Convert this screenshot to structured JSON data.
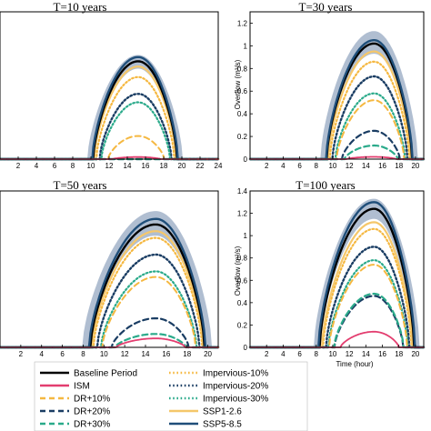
{
  "chart_data": [
    {
      "type": "line",
      "title": "T=10 years",
      "xlabel": "",
      "ylabel": "",
      "xlim": [
        0,
        24
      ],
      "ylim": [
        0,
        1.4
      ],
      "xticks": [
        2,
        4,
        6,
        8,
        10,
        12,
        14,
        16,
        18,
        20,
        22,
        24
      ],
      "yticks": [],
      "start": 10.1,
      "end": 19.6,
      "peak_t": 15.2,
      "band": {
        "low": 0.86,
        "high": 0.99
      },
      "series": [
        {
          "name": "Baseline Period",
          "peak": 0.93
        },
        {
          "name": "ISM",
          "peak": 0.02
        },
        {
          "name": "DR+10%",
          "peak": 0.22
        },
        {
          "name": "DR+20%",
          "peak": 0.0
        },
        {
          "name": "DR+30%",
          "peak": 0.0
        },
        {
          "name": "Impervious-10%",
          "peak": 0.78
        },
        {
          "name": "Impervious-20%",
          "peak": 0.62
        },
        {
          "name": "Impervious-30%",
          "peak": 0.54
        },
        {
          "name": "SSP1-2.6",
          "peak": 0.88
        },
        {
          "name": "SSP5-8.5",
          "peak": 0.97
        }
      ]
    },
    {
      "type": "line",
      "title": "T=30 years",
      "xlabel": "",
      "ylabel": "Overflow (m³/s)",
      "xlim": [
        0,
        21
      ],
      "ylim": [
        0,
        1.3
      ],
      "xticks": [
        2,
        4,
        6,
        8,
        10,
        12,
        14,
        16,
        18,
        20
      ],
      "yticks": [
        0,
        0.2,
        0.4,
        0.6,
        0.8,
        1.0,
        1.2
      ],
      "start": 9.0,
      "end": 19.8,
      "peak_t": 15.0,
      "band": {
        "low": 0.93,
        "high": 1.13
      },
      "series": [
        {
          "name": "Baseline Period",
          "peak": 1.02
        },
        {
          "name": "ISM",
          "peak": 0.02
        },
        {
          "name": "DR+10%",
          "peak": 0.52
        },
        {
          "name": "DR+20%",
          "peak": 0.25
        },
        {
          "name": "DR+30%",
          "peak": 0.12
        },
        {
          "name": "Impervious-10%",
          "peak": 0.86
        },
        {
          "name": "Impervious-20%",
          "peak": 0.73
        },
        {
          "name": "Impervious-30%",
          "peak": 0.58
        },
        {
          "name": "SSP1-2.6",
          "peak": 0.95
        },
        {
          "name": "SSP5-8.5",
          "peak": 1.05
        }
      ]
    },
    {
      "type": "line",
      "title": "T=50 years",
      "xlabel": "",
      "ylabel": "",
      "xlim": [
        0,
        21
      ],
      "ylim": [
        0,
        1.4
      ],
      "xticks": [
        2,
        4,
        6,
        8,
        10,
        12,
        14,
        16,
        18,
        20
      ],
      "yticks": [],
      "start": 8.4,
      "end": 19.9,
      "peak_t": 15.0,
      "band": {
        "low": 1.0,
        "high": 1.22
      },
      "series": [
        {
          "name": "Baseline Period",
          "peak": 1.1
        },
        {
          "name": "ISM",
          "peak": 0.08
        },
        {
          "name": "DR+10%",
          "peak": 0.63
        },
        {
          "name": "DR+20%",
          "peak": 0.26
        },
        {
          "name": "DR+30%",
          "peak": 0.12
        },
        {
          "name": "Impervious-10%",
          "peak": 0.98
        },
        {
          "name": "Impervious-20%",
          "peak": 0.83
        },
        {
          "name": "Impervious-30%",
          "peak": 0.68
        },
        {
          "name": "SSP1-2.6",
          "peak": 1.04
        },
        {
          "name": "SSP5-8.5",
          "peak": 1.15
        }
      ]
    },
    {
      "type": "line",
      "title": "T=100 years",
      "xlabel": "Time (hour)",
      "ylabel": "Overflow (m³/s)",
      "xlim": [
        0,
        21
      ],
      "ylim": [
        0,
        1.4
      ],
      "xticks": [
        2,
        4,
        6,
        8,
        10,
        12,
        14,
        16,
        18,
        20
      ],
      "yticks": [
        0,
        0.2,
        0.4,
        0.6,
        0.8,
        1.0,
        1.2,
        1.4
      ],
      "start": 8.2,
      "end": 20.0,
      "peak_t": 15.0,
      "band": {
        "low": 1.15,
        "high": 1.33
      },
      "series": [
        {
          "name": "Baseline Period",
          "peak": 1.24
        },
        {
          "name": "ISM",
          "peak": 0.14
        },
        {
          "name": "DR+10%",
          "peak": 0.74
        },
        {
          "name": "DR+20%",
          "peak": 0.46
        },
        {
          "name": "DR+30%",
          "peak": 0.48
        },
        {
          "name": "Impervious-10%",
          "peak": 1.06
        },
        {
          "name": "Impervious-20%",
          "peak": 0.9
        },
        {
          "name": "Impervious-30%",
          "peak": 0.78
        },
        {
          "name": "SSP1-2.6",
          "peak": 1.12
        },
        {
          "name": "SSP5-8.5",
          "peak": 1.3
        }
      ]
    }
  ],
  "legend": {
    "placement": "bottom",
    "entries": [
      {
        "label": "Baseline Period",
        "color": "#000000",
        "style": "solid"
      },
      {
        "label": "Impervious-10%",
        "color": "#f5b841",
        "style": "dotted"
      },
      {
        "label": "ISM",
        "color": "#e33d6f",
        "style": "solid"
      },
      {
        "label": "Impervious-20%",
        "color": "#1a3d63",
        "style": "dotted"
      },
      {
        "label": "DR+10%",
        "color": "#f5b841",
        "style": "dashed"
      },
      {
        "label": "Impervious-30%",
        "color": "#2aaa8a",
        "style": "dotted"
      },
      {
        "label": "DR+20%",
        "color": "#1a3d63",
        "style": "dashed"
      },
      {
        "label": "SSP1-2.6",
        "color": "#f5c76a",
        "style": "solid"
      },
      {
        "label": "DR+30%",
        "color": "#2aaa8a",
        "style": "dashed"
      },
      {
        "label": "SSP5-8.5",
        "color": "#1f4e79",
        "style": "solid"
      }
    ]
  }
}
